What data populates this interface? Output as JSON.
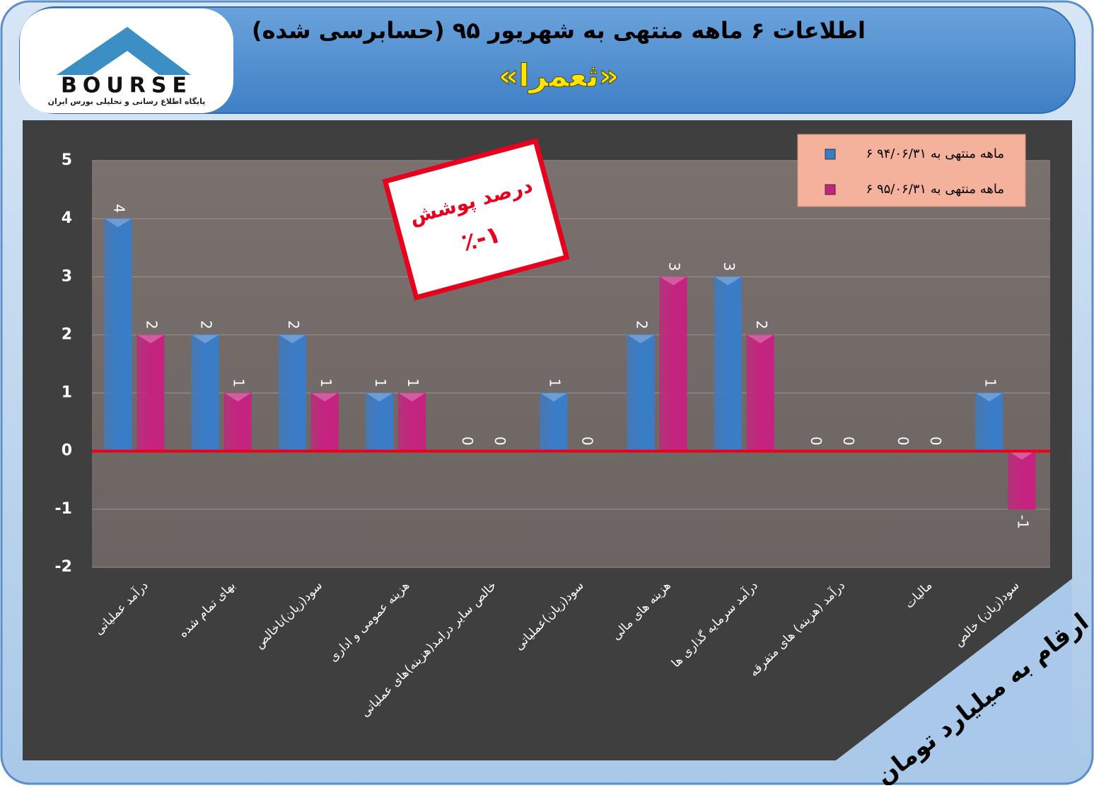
{
  "header": {
    "logo_text": "BOURSE",
    "logo_caption": "پایگاه اطلاع رسانی و تحلیلی بورس ایران"
  },
  "chart_data": {
    "type": "bar",
    "title": "اطلاعات ۶ ماهه منتهی به شهریور ۹۵ (حسابرسی شده)",
    "subtitle": "«ثعمرا»",
    "annotation": {
      "title": "درصد پوشش",
      "value": "٪-۱"
    },
    "note": "ارقام به میلیارد تومان",
    "categories": [
      "درآمد عملیاتی",
      "بهای تمام شده",
      "سود(زیان)ناخالص",
      "هزینه عمومی و اداری",
      "خالص سایر درامد(هزینه)های عملیاتی",
      "سود(زیان)عملیاتی",
      "هزینه های مالی",
      "درآمد سرمایه گذاری ها",
      "درآمد (هزینه) های متفرقه",
      "مالیات",
      "سود(زیان) خالص"
    ],
    "series": [
      {
        "name": "۶ ماهه منتهی به ۹۴/۰۶/۳۱",
        "color": "#3b7cc6",
        "values": [
          4,
          2,
          2,
          1,
          0,
          1,
          2,
          3,
          0,
          0,
          1
        ]
      },
      {
        "name": "۶ ماهه منتهی به ۹۵/۰۶/۳۱",
        "color": "#c4247f",
        "values": [
          2,
          1,
          1,
          1,
          0,
          0,
          3,
          2,
          0,
          0,
          -1
        ]
      }
    ],
    "ylim": [
      -2,
      5
    ],
    "yticks": [
      -2,
      -1,
      0,
      1,
      2,
      3,
      4,
      5
    ],
    "grid": true,
    "legend": "top-right"
  }
}
